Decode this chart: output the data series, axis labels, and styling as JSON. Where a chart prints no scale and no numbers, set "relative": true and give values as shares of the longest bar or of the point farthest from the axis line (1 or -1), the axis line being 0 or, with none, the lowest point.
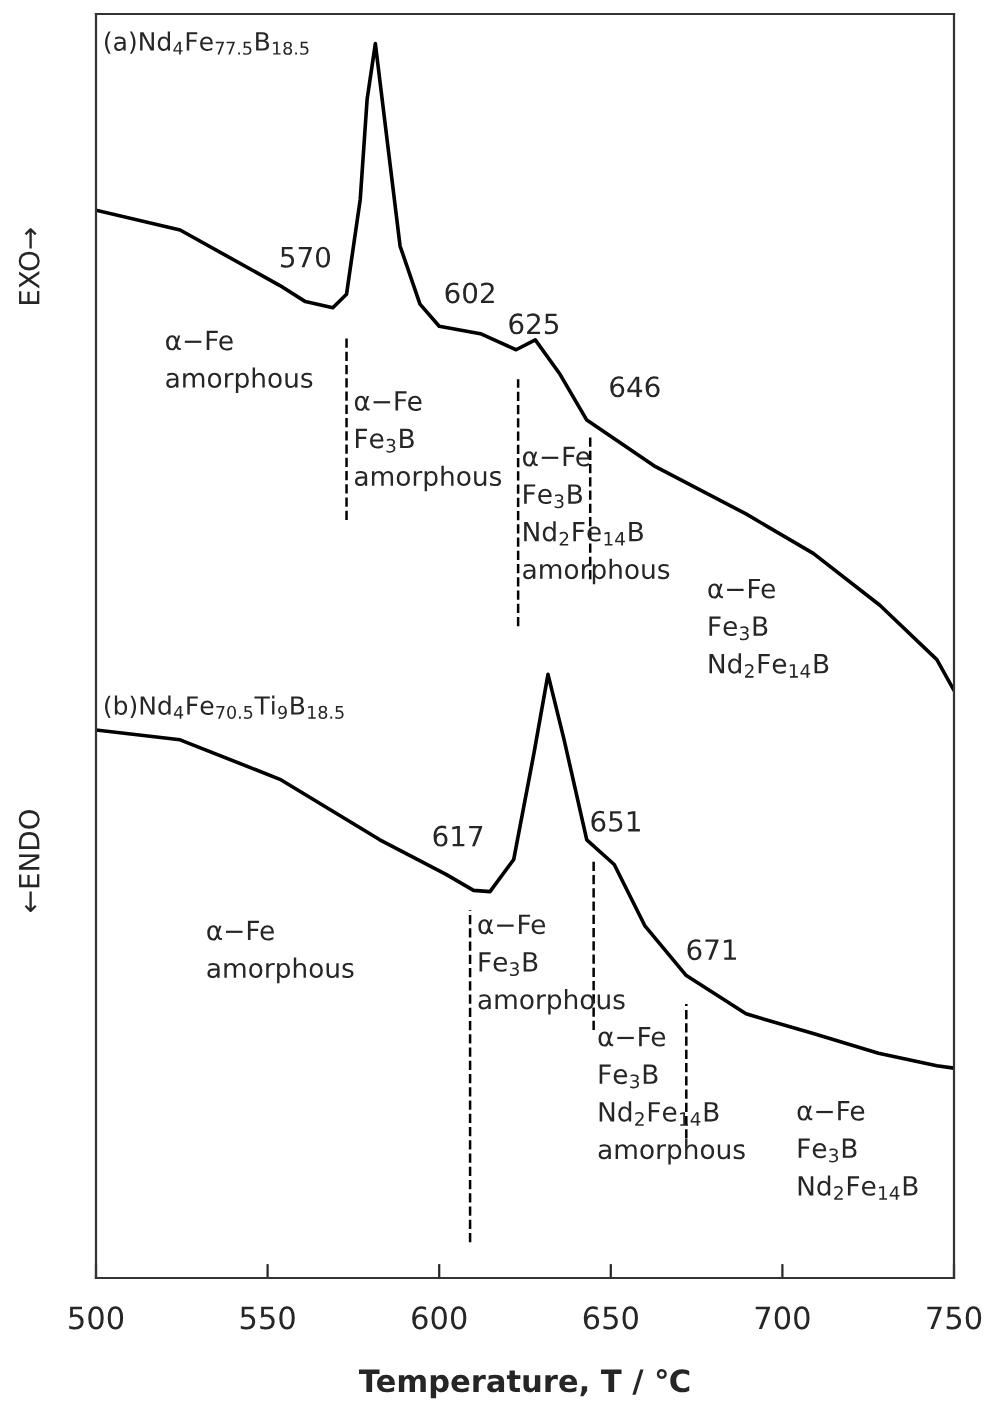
{
  "chart_data": {
    "type": "line",
    "relative": true,
    "xlabel": "Temperature, T / ℃",
    "xlim": [
      500,
      750
    ],
    "xticks": [
      500,
      550,
      600,
      650,
      700,
      750
    ],
    "grid": false,
    "legend": false,
    "marker": "none",
    "line_style": "solid",
    "series": [
      {
        "name": "(a)Nd$_{4}$Fe$_{77.5}$B$_{18.5}$",
        "color": "#000000",
        "x": [
          500,
          524.5,
          553.6,
          561,
          569,
          573,
          577,
          579,
          581.4,
          584.6,
          588.6,
          594.4,
          600,
          612,
          622.4,
          628,
          635,
          643,
          662.6,
          689.4,
          709,
          728.4,
          745,
          750
        ],
        "values": [
          0.865,
          0.849,
          0.804,
          0.791,
          0.786,
          0.797,
          0.874,
          0.955,
          1.0,
          0.927,
          0.836,
          0.789,
          0.771,
          0.765,
          0.752,
          0.76,
          0.733,
          0.695,
          0.658,
          0.619,
          0.587,
          0.545,
          0.501,
          0.476
        ]
      },
      {
        "name": "(b)Nd$_{4}$Fe$_{70.5}$Ti$_{9}$B$_{18.5}$",
        "color": "#000000",
        "x": [
          500,
          524.5,
          553.6,
          582.7,
          602,
          610,
          614.8,
          621.7,
          627.6,
          631.7,
          636.4,
          643,
          651,
          660,
          672,
          689.4,
          709,
          728,
          745,
          750
        ],
        "values": [
          0.444,
          0.436,
          0.404,
          0.355,
          0.327,
          0.314,
          0.313,
          0.339,
          0.425,
          0.489,
          0.436,
          0.355,
          0.335,
          0.285,
          0.245,
          0.214,
          0.198,
          0.182,
          0.172,
          0.17
        ]
      }
    ],
    "ref_lines": [
      {
        "axis": "x",
        "value": 573,
        "line_style": "dashed",
        "color": "#000000"
      },
      {
        "axis": "x",
        "value": 623,
        "line_style": "dashed",
        "color": "#000000"
      },
      {
        "axis": "x",
        "value": 644,
        "line_style": "dashed",
        "color": "#000000"
      },
      {
        "axis": "x",
        "value": 609,
        "line_style": "dashed",
        "color": "#000000"
      },
      {
        "axis": "x",
        "value": 645,
        "line_style": "dashed",
        "color": "#000000"
      },
      {
        "axis": "x",
        "value": 672,
        "line_style": "dashed",
        "color": "#000000"
      }
    ],
    "annotations": [
      "570",
      "602",
      "625",
      "646",
      "617",
      "651",
      "671",
      "α−Fe\namorphous",
      "α−Fe\nFe$_{3}$B\namorphous",
      "α−Fe\nFe$_{3}$B\nNd$_{2}$Fe$_{14}$B\namorphous",
      "α−Fe\nFe$_{3}$B\nNd$_{2}$Fe$_{14}$B",
      "α−Fe\namorphous",
      "α−Fe\nFe$_{3}$B\namorphous",
      "α−Fe\nFe$_{3}$B\nNd$_{2}$Fe$_{14}$B\namorphous",
      "α−Fe\nFe$_{3}$B\nNd$_{2}$Fe$_{14}$B",
      "EXO→",
      "←ENDO"
    ]
  }
}
